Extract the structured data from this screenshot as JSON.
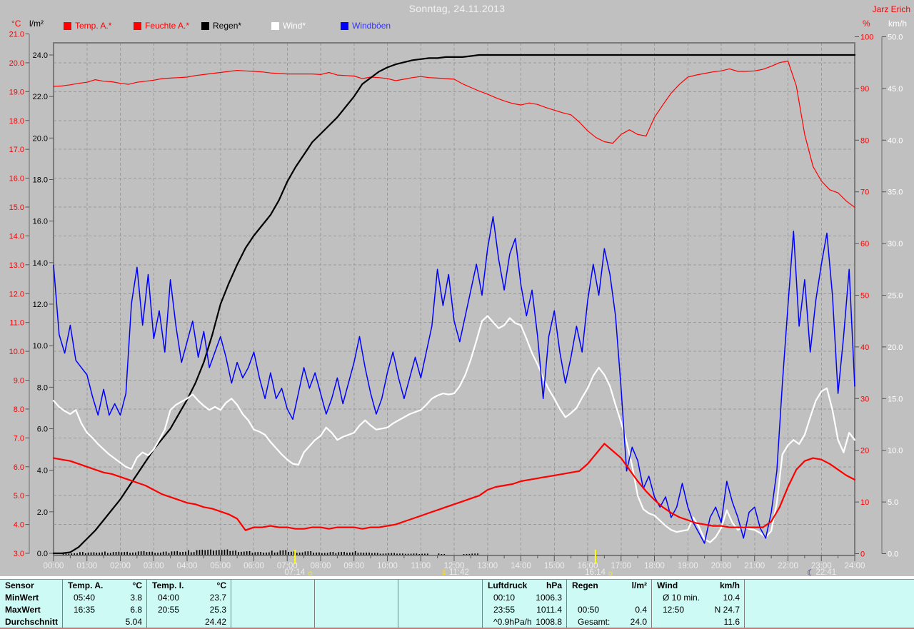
{
  "titlebar": {
    "title": "Sonntag, 24.11.2013",
    "user": "Jarz Erich"
  },
  "legend": [
    {
      "label": "Temp. A.*",
      "color": "#ff0000",
      "text_color": "#ff0000"
    },
    {
      "label": "Feuchte A.*",
      "color": "#ff0000",
      "text_color": "#ff0000"
    },
    {
      "label": "Regen*",
      "color": "#000000",
      "text_color": "#000000"
    },
    {
      "label": "Wind*",
      "color": "#ffffff",
      "text_color": "#ffffff"
    },
    {
      "label": "Windböen",
      "color": "#0000ff",
      "text_color": "#3333ff"
    }
  ],
  "chart_data": {
    "type": "line",
    "title": "Sonntag, 24.11.2013",
    "x_unit": "time",
    "x_range_hours": [
      0,
      24
    ],
    "grid": "on",
    "x_ticks": [
      "00:00",
      "01:00",
      "02:00",
      "03:00",
      "04:00",
      "05:00",
      "06:00",
      "07:00",
      "08:00",
      "09:00",
      "10:00",
      "11:00",
      "12:00",
      "13:00",
      "14:00",
      "15:00",
      "16:00",
      "17:00",
      "18:00",
      "19:00",
      "20:00",
      "21:00",
      "22:00",
      "23:00",
      "24:00"
    ],
    "axes": {
      "temp": {
        "label": "°C",
        "min": 3,
        "max": 21,
        "step": 1,
        "color": "#ff0000",
        "side": "left-outer"
      },
      "rain": {
        "label": "l/m²",
        "min": 0,
        "max": 24,
        "step": 2,
        "color": "#000000",
        "side": "left-inner"
      },
      "humidity": {
        "label": "%",
        "min": 0,
        "max": 100,
        "step": 10,
        "color": "#ff0000",
        "side": "right-inner"
      },
      "wind": {
        "label": "km/h",
        "min": 0,
        "max": 50,
        "step": 5,
        "color": "#ffffff",
        "side": "right-outer"
      }
    },
    "series": [
      {
        "name": "Temp. A.*",
        "axis": "temp",
        "color": "#ff0000",
        "width": 2.2,
        "step_h": 0.25,
        "values": [
          6.3,
          6.25,
          6.2,
          6.1,
          6.0,
          5.9,
          5.8,
          5.75,
          5.65,
          5.55,
          5.45,
          5.35,
          5.2,
          5.05,
          4.95,
          4.85,
          4.75,
          4.7,
          4.6,
          4.55,
          4.45,
          4.35,
          4.2,
          3.8,
          3.9,
          3.9,
          3.95,
          3.9,
          3.9,
          3.85,
          3.85,
          3.9,
          3.9,
          3.85,
          3.9,
          3.9,
          3.9,
          3.85,
          3.9,
          3.9,
          3.95,
          4.0,
          4.1,
          4.2,
          4.3,
          4.4,
          4.5,
          4.6,
          4.7,
          4.8,
          4.9,
          5.0,
          5.2,
          5.3,
          5.35,
          5.4,
          5.5,
          5.55,
          5.6,
          5.65,
          5.7,
          5.75,
          5.8,
          5.85,
          6.1,
          6.45,
          6.8,
          6.55,
          6.3,
          5.9,
          5.5,
          5.15,
          4.85,
          4.6,
          4.4,
          4.25,
          4.15,
          4.05,
          4.0,
          3.95,
          3.95,
          3.9,
          3.9,
          3.9,
          3.9,
          3.9,
          4.1,
          4.6,
          5.3,
          5.9,
          6.2,
          6.3,
          6.25,
          6.1,
          5.9,
          5.7,
          5.55
        ]
      },
      {
        "name": "Feuchte A.*",
        "axis": "humidity",
        "color": "#ff0000",
        "width": 1.2,
        "step_h": 0.25,
        "values": [
          90.4,
          90.5,
          90.7,
          91.0,
          91.2,
          91.7,
          91.4,
          91.3,
          91.0,
          90.8,
          91.2,
          91.4,
          91.6,
          91.9,
          92.0,
          92.1,
          92.2,
          92.5,
          92.7,
          92.9,
          93.1,
          93.3,
          93.5,
          93.4,
          93.3,
          93.2,
          93.0,
          92.9,
          92.8,
          92.8,
          92.8,
          92.8,
          92.7,
          93.1,
          92.6,
          92.5,
          92.4,
          91.9,
          92.2,
          92.1,
          91.9,
          91.5,
          91.8,
          92.1,
          92.3,
          92.1,
          92.0,
          91.9,
          91.8,
          90.9,
          90.2,
          89.5,
          88.9,
          88.2,
          87.6,
          87.1,
          86.8,
          87.2,
          86.9,
          86.3,
          85.8,
          85.3,
          84.9,
          83.5,
          81.8,
          80.5,
          79.7,
          79.4,
          81.1,
          82.0,
          81.1,
          80.8,
          84.4,
          86.8,
          89.1,
          90.8,
          92.2,
          92.6,
          92.9,
          93.2,
          93.4,
          93.8,
          93.3,
          93.3,
          93.4,
          93.7,
          94.3,
          95.0,
          95.3,
          90.5,
          81.1,
          74.9,
          72.1,
          70.4,
          69.8,
          68.2,
          67.0
        ]
      },
      {
        "name": "Regen*",
        "axis": "rain",
        "color": "#000000",
        "width": 2.2,
        "step_h": 0.25,
        "values": [
          0,
          0,
          0.05,
          0.3,
          0.7,
          1.1,
          1.6,
          2.1,
          2.6,
          3.2,
          3.8,
          4.4,
          5.0,
          5.5,
          6.0,
          6.7,
          7.4,
          8.2,
          9.2,
          10.5,
          12.0,
          13.0,
          13.9,
          14.7,
          15.3,
          15.8,
          16.3,
          17.0,
          17.9,
          18.6,
          19.2,
          19.8,
          20.2,
          20.6,
          21.0,
          21.5,
          22.0,
          22.6,
          22.9,
          23.2,
          23.4,
          23.55,
          23.65,
          23.75,
          23.8,
          23.85,
          23.85,
          23.9,
          23.9,
          23.9,
          23.95,
          24.0,
          24.0,
          24.0,
          24.0,
          24.0,
          24.0,
          24.0,
          24.0,
          24.0,
          24.0,
          24.0,
          24.0,
          24.0,
          24.0,
          24.0,
          24.0,
          24.0,
          24.0,
          24.0,
          24.0,
          24.0,
          24.0,
          24.0,
          24.0,
          24.0,
          24.0,
          24.0,
          24.0,
          24.0,
          24.0,
          24.0,
          24.0,
          24.0,
          24.0,
          24.0,
          24.0,
          24.0,
          24.0,
          24.0,
          24.0,
          24.0,
          24.0,
          24.0,
          24.0,
          24.0,
          24.0
        ]
      },
      {
        "name": "Wind*",
        "axis": "wind",
        "color": "#ffffff",
        "width": 2.2,
        "step_h": 0.166667,
        "values": [
          14.8,
          14.2,
          13.8,
          13.5,
          13.9,
          12.6,
          11.7,
          11.2,
          10.6,
          10.1,
          9.6,
          9.2,
          8.8,
          8.4,
          8.2,
          9.3,
          9.8,
          9.5,
          10.1,
          11.0,
          12.0,
          13.9,
          14.4,
          14.7,
          15.0,
          15.4,
          14.8,
          14.3,
          13.9,
          14.2,
          13.9,
          14.6,
          15.0,
          14.4,
          13.5,
          12.9,
          12.0,
          11.8,
          11.5,
          10.8,
          10.2,
          9.6,
          9.1,
          8.7,
          8.6,
          9.8,
          10.4,
          11.0,
          11.4,
          12.2,
          11.7,
          11.0,
          11.3,
          11.5,
          11.7,
          12.4,
          12.9,
          12.4,
          12.0,
          12.1,
          12.2,
          12.6,
          12.9,
          13.2,
          13.5,
          13.7,
          13.9,
          14.4,
          15.0,
          15.3,
          15.5,
          15.4,
          15.5,
          16.2,
          17.3,
          18.8,
          20.6,
          22.5,
          23.0,
          22.4,
          21.8,
          22.1,
          22.8,
          22.3,
          22.1,
          20.8,
          19.4,
          18.3,
          17.0,
          15.9,
          15.0,
          14.0,
          13.2,
          13.6,
          14.1,
          15.1,
          16.0,
          17.2,
          18.0,
          17.3,
          16.2,
          14.4,
          12.7,
          10.8,
          8.5,
          5.6,
          4.3,
          3.9,
          3.7,
          3.2,
          2.7,
          2.3,
          2.1,
          2.2,
          2.3,
          3.5,
          2.6,
          1.4,
          1.1,
          1.6,
          2.5,
          4.2,
          3.0,
          2.3,
          2.6,
          2.4,
          2.3,
          2.0,
          1.6,
          2.2,
          4.9,
          9.6,
          10.5,
          11.0,
          10.6,
          11.5,
          13.2,
          14.8,
          15.7,
          16.0,
          13.9,
          11.0,
          9.8,
          11.7,
          11.0
        ]
      },
      {
        "name": "Windböen",
        "axis": "wind",
        "color": "#0000ff",
        "width": 1.5,
        "step_h": 0.166667,
        "values": [
          27.9,
          21.2,
          19.4,
          22.1,
          18.7,
          18.0,
          17.3,
          15.2,
          13.4,
          15.9,
          13.4,
          14.5,
          13.4,
          15.5,
          24.2,
          27.7,
          22.1,
          27.0,
          20.8,
          23.5,
          19.5,
          26.5,
          22.0,
          18.5,
          20.5,
          22.5,
          19.0,
          21.5,
          18.0,
          19.5,
          21.0,
          19.0,
          16.5,
          18.5,
          17.0,
          18.0,
          19.5,
          17.0,
          15.0,
          17.5,
          15.0,
          16.0,
          14.0,
          13.0,
          15.5,
          18.0,
          16.0,
          17.5,
          15.5,
          13.5,
          15.0,
          17.0,
          14.5,
          16.5,
          18.5,
          21.0,
          18.0,
          15.5,
          13.5,
          15.0,
          17.5,
          19.5,
          17.0,
          15.0,
          17.0,
          19.0,
          17.0,
          19.5,
          22.0,
          27.5,
          24.0,
          27.0,
          22.5,
          20.5,
          23.0,
          25.5,
          28.0,
          25.0,
          29.5,
          32.6,
          28.5,
          25.5,
          29.0,
          30.5,
          26.0,
          23.0,
          25.5,
          21.0,
          15.0,
          21.0,
          23.5,
          19.5,
          16.5,
          19.0,
          22.0,
          19.5,
          24.5,
          28.0,
          25.0,
          29.5,
          27.0,
          23.0,
          16.0,
          8.0,
          10.3,
          9.0,
          6.3,
          7.5,
          5.5,
          4.5,
          5.5,
          3.5,
          4.5,
          6.8,
          4.5,
          3.0,
          2.0,
          1.0,
          3.5,
          4.5,
          3.0,
          7.0,
          5.0,
          3.5,
          1.5,
          4.0,
          4.5,
          2.5,
          1.5,
          4.0,
          8.0,
          16.5,
          24.0,
          31.2,
          22.0,
          26.5,
          19.5,
          24.5,
          28.0,
          31.0,
          25.0,
          15.5,
          21.0,
          27.5,
          16.2
        ]
      }
    ],
    "sun_markers": [
      {
        "label": "07:14",
        "t": 7.233,
        "icon": "sunrise-icon",
        "icon_side": "right",
        "axis_line": true
      },
      {
        "label": "11:42",
        "t": 11.7,
        "icon": "arrow-down-icon",
        "icon_side": "left",
        "axis_line": false
      },
      {
        "label": "16:14",
        "t": 16.233,
        "icon": "sunset-icon",
        "icon_side": "right",
        "axis_line": true
      },
      {
        "label": "22:41",
        "t": 22.683,
        "icon": "moonrise-icon",
        "icon_side": "left",
        "axis_line": false
      }
    ]
  },
  "table": {
    "row_labels": [
      "Sensor",
      "MinWert",
      "MaxWert",
      "Durchschnitt"
    ],
    "columns": [
      {
        "name": "Temp. A.",
        "unit": "°C",
        "rows": [
          [
            "05:40",
            "3.8"
          ],
          [
            "16:35",
            "6.8"
          ],
          [
            "",
            "5.04"
          ]
        ]
      },
      {
        "name": "Temp. I.",
        "unit": "°C",
        "rows": [
          [
            "04:00",
            "23.7"
          ],
          [
            "20:55",
            "25.3"
          ],
          [
            "",
            "24.42"
          ]
        ]
      },
      {
        "name": "",
        "unit": "",
        "rows": [
          [
            "",
            ""
          ],
          [
            "",
            ""
          ],
          [
            "",
            ""
          ]
        ]
      },
      {
        "name": "",
        "unit": "",
        "rows": [
          [
            "",
            ""
          ],
          [
            "",
            ""
          ],
          [
            "",
            ""
          ]
        ]
      },
      {
        "name": "",
        "unit": "",
        "rows": [
          [
            "",
            ""
          ],
          [
            "",
            ""
          ],
          [
            "",
            ""
          ]
        ]
      },
      {
        "name": "Luftdruck",
        "unit": "hPa",
        "rows": [
          [
            "00:10",
            "1006.3"
          ],
          [
            "23:55",
            "1011.4"
          ],
          [
            "^0.9hPa/h",
            "1008.8"
          ]
        ]
      },
      {
        "name": "Regen",
        "unit": "l/m²",
        "rows": [
          [
            "",
            ""
          ],
          [
            "00:50",
            "0.4"
          ],
          [
            "Gesamt:",
            "24.0"
          ]
        ]
      },
      {
        "name": "Wind",
        "unit": "km/h",
        "rows": [
          [
            "Ø 10 min.",
            "10.4"
          ],
          [
            "12:50",
            "N 24.7"
          ],
          [
            "",
            "11.6"
          ]
        ]
      }
    ]
  },
  "colors": {
    "background": "#c0c0c0",
    "plot_frame": "#7a7a7a",
    "grid": "#9a9a9a",
    "x_label": "#ededed",
    "table_background": "#cdfaf5",
    "marker_yellow": "#ffff00",
    "bottom_line": "#da7070"
  }
}
